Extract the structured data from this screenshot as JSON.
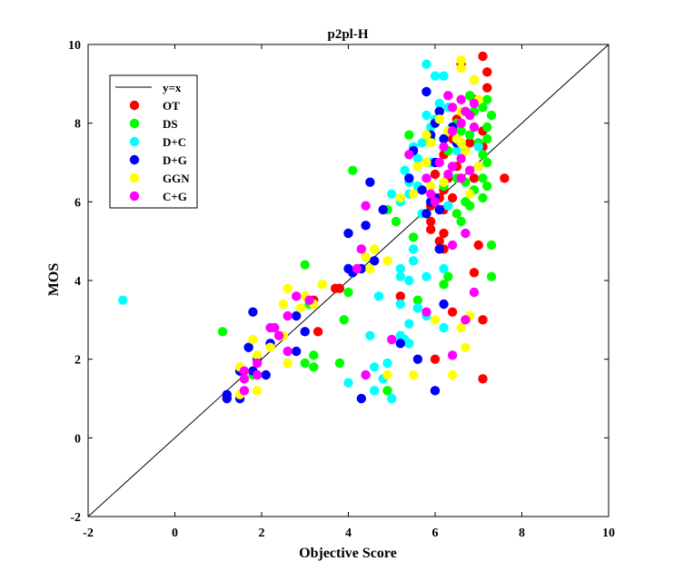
{
  "chart_data": {
    "type": "scatter",
    "title": "p2pl-H",
    "xlabel": "Objective Score",
    "ylabel": "MOS",
    "xlim": [
      -2,
      10
    ],
    "ylim": [
      -2,
      10
    ],
    "xticks": [
      -2,
      0,
      2,
      4,
      6,
      8,
      10
    ],
    "yticks": [
      -2,
      0,
      2,
      4,
      6,
      8,
      10
    ],
    "grid": false,
    "legend_position": "top-left",
    "reference_line": {
      "label": "y=x",
      "color": "#000000",
      "points": [
        [
          -2,
          -2
        ],
        [
          10,
          10
        ]
      ]
    },
    "series": [
      {
        "name": "OT",
        "color": "#ff0000",
        "points": [
          [
            7.1,
            9.7
          ],
          [
            6.6,
            9.5
          ],
          [
            7.2,
            9.3
          ],
          [
            6.9,
            9.1
          ],
          [
            7.2,
            8.9
          ],
          [
            6.9,
            8.6
          ],
          [
            6.1,
            8.3
          ],
          [
            6.5,
            8.1
          ],
          [
            7.1,
            7.8
          ],
          [
            6.4,
            7.6
          ],
          [
            6.8,
            7.5
          ],
          [
            7.1,
            7.4
          ],
          [
            6.2,
            7.2
          ],
          [
            6.5,
            6.9
          ],
          [
            6.0,
            6.7
          ],
          [
            6.3,
            6.6
          ],
          [
            6.9,
            6.6
          ],
          [
            7.6,
            6.6
          ],
          [
            6.2,
            6.3
          ],
          [
            6.1,
            6.1
          ],
          [
            6.4,
            6.1
          ],
          [
            5.9,
            5.9
          ],
          [
            6.2,
            5.8
          ],
          [
            5.9,
            5.5
          ],
          [
            5.9,
            5.3
          ],
          [
            6.2,
            5.2
          ],
          [
            6.1,
            5.0
          ],
          [
            6.2,
            4.8
          ],
          [
            7.0,
            4.9
          ],
          [
            6.9,
            4.2
          ],
          [
            3.2,
            3.5
          ],
          [
            3.8,
            3.8
          ],
          [
            3.7,
            3.8
          ],
          [
            5.2,
            3.6
          ],
          [
            6.4,
            3.2
          ],
          [
            7.1,
            3.0
          ],
          [
            3.3,
            2.7
          ],
          [
            6.0,
            2.0
          ],
          [
            7.1,
            1.5
          ]
        ]
      },
      {
        "name": "DS",
        "color": "#00ff00",
        "points": [
          [
            7.2,
            8.6
          ],
          [
            6.8,
            8.7
          ],
          [
            7.1,
            8.4
          ],
          [
            6.9,
            8.3
          ],
          [
            7.3,
            8.2
          ],
          [
            6.5,
            8.0
          ],
          [
            7.2,
            7.9
          ],
          [
            6.6,
            7.8
          ],
          [
            6.8,
            7.7
          ],
          [
            7.2,
            7.6
          ],
          [
            5.4,
            7.7
          ],
          [
            5.9,
            7.6
          ],
          [
            6.5,
            7.5
          ],
          [
            7.0,
            7.5
          ],
          [
            7.1,
            7.2
          ],
          [
            6.3,
            7.3
          ],
          [
            7.2,
            7.0
          ],
          [
            4.1,
            6.8
          ],
          [
            7.1,
            6.6
          ],
          [
            6.5,
            6.6
          ],
          [
            6.7,
            6.5
          ],
          [
            7.2,
            6.4
          ],
          [
            6.9,
            6.3
          ],
          [
            6.2,
            6.4
          ],
          [
            7.1,
            6.1
          ],
          [
            6.7,
            6.0
          ],
          [
            6.8,
            5.9
          ],
          [
            6.5,
            5.7
          ],
          [
            6.6,
            5.5
          ],
          [
            4.9,
            5.8
          ],
          [
            5.1,
            5.5
          ],
          [
            5.5,
            5.1
          ],
          [
            7.3,
            4.9
          ],
          [
            3.0,
            4.4
          ],
          [
            6.3,
            4.1
          ],
          [
            7.3,
            4.1
          ],
          [
            6.2,
            3.9
          ],
          [
            4.0,
            3.7
          ],
          [
            5.6,
            3.5
          ],
          [
            3.1,
            3.4
          ],
          [
            3.9,
            3.0
          ],
          [
            1.1,
            2.7
          ],
          [
            3.2,
            2.1
          ],
          [
            3.0,
            1.9
          ],
          [
            3.2,
            1.8
          ],
          [
            3.8,
            1.9
          ],
          [
            4.9,
            1.2
          ],
          [
            1.5,
            1.7
          ],
          [
            1.8,
            1.6
          ]
        ]
      },
      {
        "name": "D+C",
        "color": "#00ffff",
        "points": [
          [
            5.8,
            9.5
          ],
          [
            6.0,
            9.2
          ],
          [
            6.2,
            9.2
          ],
          [
            5.8,
            8.8
          ],
          [
            6.1,
            8.5
          ],
          [
            6.3,
            8.4
          ],
          [
            5.8,
            8.2
          ],
          [
            6.0,
            8.1
          ],
          [
            5.9,
            7.9
          ],
          [
            6.3,
            7.8
          ],
          [
            5.7,
            7.5
          ],
          [
            5.5,
            7.4
          ],
          [
            5.6,
            7.1
          ],
          [
            5.9,
            7.0
          ],
          [
            5.3,
            6.8
          ],
          [
            6.5,
            7.3
          ],
          [
            5.4,
            6.5
          ],
          [
            5.6,
            6.4
          ],
          [
            5.2,
            6.0
          ],
          [
            5.0,
            6.2
          ],
          [
            5.4,
            6.2
          ],
          [
            5.7,
            5.7
          ],
          [
            6.3,
            5.9
          ],
          [
            5.5,
            4.8
          ],
          [
            5.2,
            4.3
          ],
          [
            5.5,
            4.5
          ],
          [
            5.2,
            4.1
          ],
          [
            5.4,
            4.0
          ],
          [
            5.8,
            4.1
          ],
          [
            6.2,
            4.3
          ],
          [
            4.7,
            3.6
          ],
          [
            5.2,
            3.4
          ],
          [
            5.6,
            3.3
          ],
          [
            5.4,
            2.9
          ],
          [
            5.8,
            3.1
          ],
          [
            6.2,
            2.8
          ],
          [
            5.2,
            2.6
          ],
          [
            4.5,
            2.6
          ],
          [
            5.4,
            2.4
          ],
          [
            5.3,
            2.5
          ],
          [
            4.9,
            1.9
          ],
          [
            4.6,
            1.8
          ],
          [
            4.4,
            1.6
          ],
          [
            4.0,
            1.4
          ],
          [
            4.8,
            1.5
          ],
          [
            4.6,
            1.2
          ],
          [
            5.0,
            1.0
          ],
          [
            7.0,
            7.4
          ],
          [
            -1.2,
            3.5
          ],
          [
            1.7,
            2.3
          ]
        ]
      },
      {
        "name": "D+G",
        "color": "#0000ff",
        "points": [
          [
            5.8,
            8.8
          ],
          [
            6.1,
            8.3
          ],
          [
            6.0,
            8.0
          ],
          [
            6.4,
            7.9
          ],
          [
            5.9,
            7.7
          ],
          [
            6.2,
            7.6
          ],
          [
            6.5,
            7.5
          ],
          [
            5.5,
            7.3
          ],
          [
            6.0,
            7.0
          ],
          [
            5.4,
            6.6
          ],
          [
            5.7,
            6.3
          ],
          [
            6.0,
            6.1
          ],
          [
            5.9,
            6.0
          ],
          [
            6.1,
            5.8
          ],
          [
            5.8,
            5.7
          ],
          [
            4.5,
            6.5
          ],
          [
            4.8,
            5.8
          ],
          [
            4.4,
            5.4
          ],
          [
            4.0,
            5.2
          ],
          [
            6.1,
            4.8
          ],
          [
            4.6,
            4.5
          ],
          [
            4.1,
            4.2
          ],
          [
            4.3,
            4.3
          ],
          [
            2.8,
            3.1
          ],
          [
            3.0,
            2.7
          ],
          [
            1.8,
            3.2
          ],
          [
            2.8,
            2.2
          ],
          [
            2.2,
            2.4
          ],
          [
            1.7,
            2.3
          ],
          [
            1.9,
            2.0
          ],
          [
            1.8,
            1.7
          ],
          [
            2.1,
            1.6
          ],
          [
            1.5,
            1.7
          ],
          [
            1.2,
            1.1
          ],
          [
            1.2,
            1.0
          ],
          [
            1.5,
            1.0
          ],
          [
            4.3,
            1.0
          ],
          [
            5.2,
            2.4
          ],
          [
            5.6,
            2.0
          ],
          [
            6.0,
            1.2
          ],
          [
            6.2,
            3.4
          ],
          [
            4.0,
            4.3
          ]
        ]
      },
      {
        "name": "GGN",
        "color": "#ffff00",
        "points": [
          [
            6.6,
            9.6
          ],
          [
            6.6,
            9.4
          ],
          [
            6.9,
            9.1
          ],
          [
            7.0,
            8.6
          ],
          [
            6.6,
            8.3
          ],
          [
            6.1,
            8.1
          ],
          [
            6.5,
            7.6
          ],
          [
            6.7,
            7.3
          ],
          [
            5.8,
            7.7
          ],
          [
            5.9,
            7.5
          ],
          [
            6.3,
            7.8
          ],
          [
            5.8,
            7.0
          ],
          [
            5.6,
            6.9
          ],
          [
            5.5,
            6.2
          ],
          [
            5.2,
            6.1
          ],
          [
            6.2,
            6.5
          ],
          [
            5.9,
            6.4
          ],
          [
            6.8,
            6.2
          ],
          [
            7.0,
            6.9
          ],
          [
            6.6,
            7.5
          ],
          [
            4.6,
            4.8
          ],
          [
            4.4,
            4.6
          ],
          [
            4.5,
            4.3
          ],
          [
            4.9,
            4.5
          ],
          [
            3.4,
            3.9
          ],
          [
            2.6,
            3.8
          ],
          [
            2.5,
            3.4
          ],
          [
            2.9,
            3.3
          ],
          [
            3.0,
            3.6
          ],
          [
            3.2,
            3.4
          ],
          [
            2.5,
            2.6
          ],
          [
            2.2,
            2.3
          ],
          [
            1.9,
            2.1
          ],
          [
            1.8,
            2.5
          ],
          [
            2.6,
            1.9
          ],
          [
            1.5,
            1.8
          ],
          [
            1.6,
            1.5
          ],
          [
            1.9,
            1.2
          ],
          [
            1.5,
            1.1
          ],
          [
            4.9,
            1.6
          ],
          [
            5.5,
            1.6
          ],
          [
            6.4,
            1.6
          ],
          [
            6.7,
            2.3
          ],
          [
            6.6,
            2.8
          ],
          [
            6.8,
            3.1
          ],
          [
            6.0,
            3.0
          ]
        ]
      },
      {
        "name": "C+G",
        "color": "#ff00ff",
        "points": [
          [
            6.3,
            8.7
          ],
          [
            6.6,
            8.6
          ],
          [
            6.9,
            8.5
          ],
          [
            6.4,
            8.4
          ],
          [
            6.7,
            8.3
          ],
          [
            6.8,
            8.2
          ],
          [
            6.6,
            8.0
          ],
          [
            6.9,
            7.9
          ],
          [
            6.4,
            7.8
          ],
          [
            6.2,
            7.4
          ],
          [
            6.6,
            7.1
          ],
          [
            6.4,
            6.9
          ],
          [
            6.8,
            6.8
          ],
          [
            6.1,
            7.0
          ],
          [
            6.3,
            6.7
          ],
          [
            5.8,
            6.6
          ],
          [
            6.6,
            6.6
          ],
          [
            5.9,
            6.2
          ],
          [
            6.0,
            6.0
          ],
          [
            5.4,
            7.2
          ],
          [
            4.4,
            5.9
          ],
          [
            4.3,
            4.8
          ],
          [
            4.2,
            4.3
          ],
          [
            2.8,
            3.6
          ],
          [
            3.1,
            3.5
          ],
          [
            2.6,
            3.1
          ],
          [
            2.3,
            2.8
          ],
          [
            2.4,
            2.6
          ],
          [
            2.2,
            2.8
          ],
          [
            2.6,
            2.2
          ],
          [
            1.9,
            1.9
          ],
          [
            1.6,
            1.7
          ],
          [
            1.9,
            1.6
          ],
          [
            1.6,
            1.5
          ],
          [
            1.6,
            1.2
          ],
          [
            4.4,
            1.6
          ],
          [
            5.0,
            2.5
          ],
          [
            5.8,
            3.2
          ],
          [
            6.7,
            3.0
          ],
          [
            6.9,
            3.7
          ],
          [
            6.4,
            2.1
          ],
          [
            6.7,
            5.2
          ],
          [
            6.4,
            4.9
          ]
        ]
      }
    ]
  }
}
